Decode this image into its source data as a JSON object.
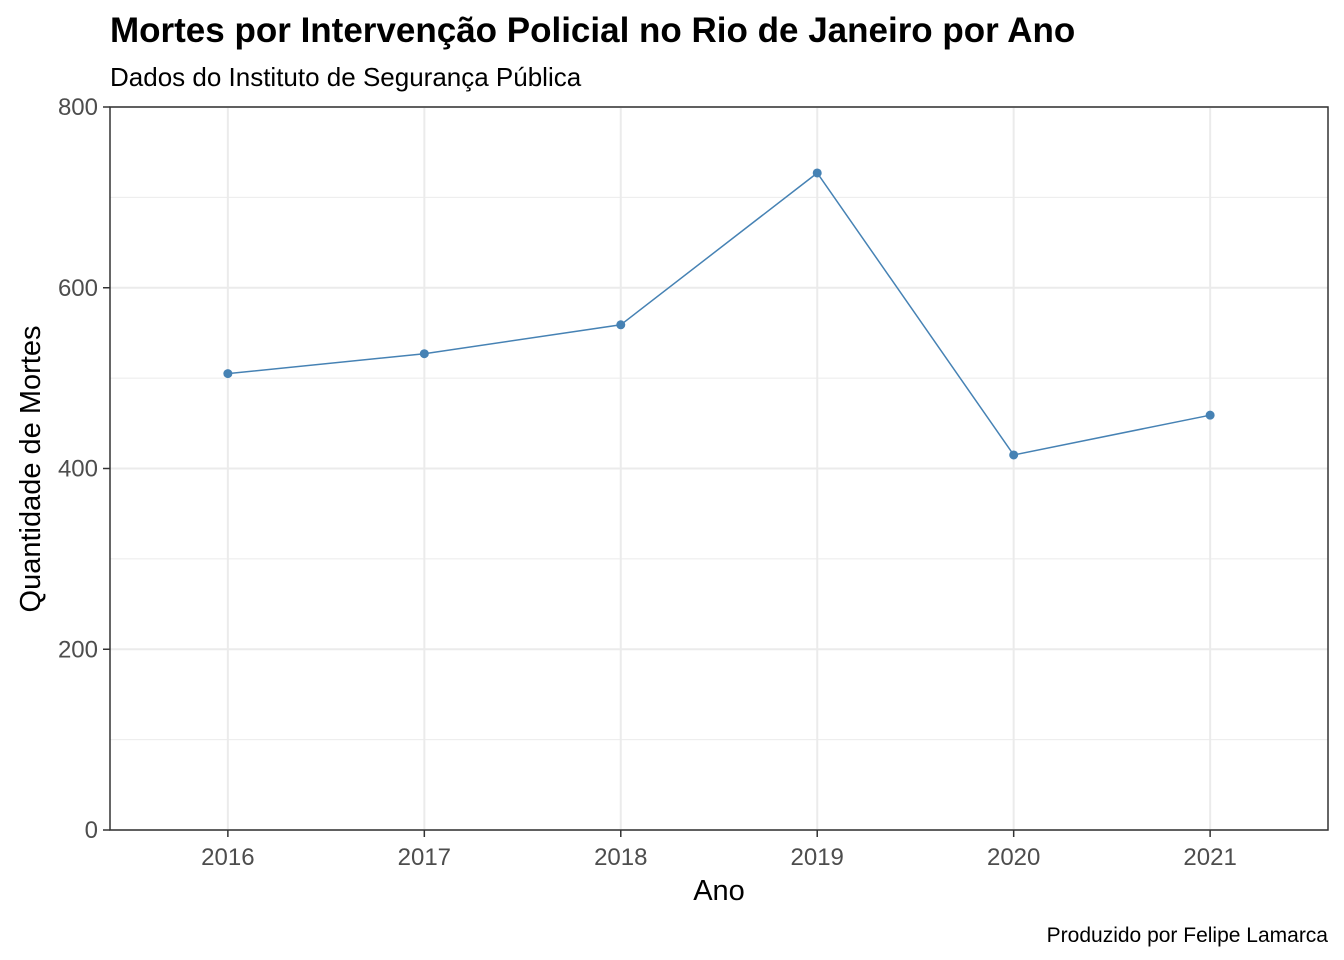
{
  "chart_data": {
    "type": "line",
    "title": "Mortes por Intervenção Policial no Rio de Janeiro por Ano",
    "subtitle": "Dados do Instituto de Segurança Pública",
    "caption": "Produzido por Felipe Lamarca",
    "xlabel": "Ano",
    "ylabel": "Quantidade de Mortes",
    "x": [
      "2016",
      "2017",
      "2018",
      "2019",
      "2020",
      "2021"
    ],
    "series": [
      {
        "values": [
          505,
          527,
          559,
          727,
          415,
          459
        ]
      }
    ],
    "ylim": [
      0,
      800
    ],
    "yticks": [
      "0",
      "200",
      "400",
      "600",
      "800"
    ],
    "grid": true,
    "legend": "none",
    "line_color": "#4682b4",
    "panel_border_color": "#333333",
    "grid_color": "#ebebeb"
  }
}
